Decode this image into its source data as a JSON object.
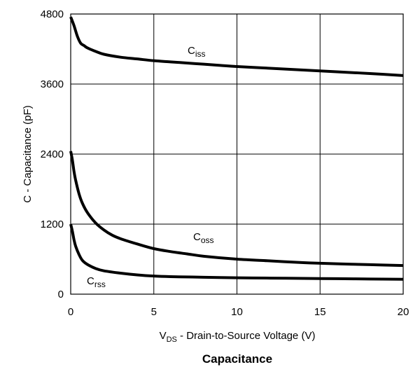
{
  "chart_data": {
    "type": "line",
    "title": "Capacitance",
    "xlabel": {
      "main": "V",
      "sub": "DS",
      "rest": " - Drain-to-Source Voltage (V)"
    },
    "ylabel": "C - Capacitance (pF)",
    "xlim": [
      0,
      20
    ],
    "ylim": [
      0,
      4800
    ],
    "xticks": [
      "0",
      "5",
      "10",
      "15",
      "20"
    ],
    "yticks": [
      "0",
      "1200",
      "2400",
      "3600",
      "4800"
    ],
    "grid": true,
    "series": [
      {
        "name": {
          "main": "C",
          "sub": "iss"
        },
        "x": [
          0,
          0.2,
          0.4,
          0.6,
          0.8,
          1.0,
          1.5,
          2,
          3,
          4,
          5,
          6,
          7,
          8,
          9,
          10,
          12,
          14,
          16,
          18,
          20
        ],
        "y": [
          4750,
          4600,
          4420,
          4300,
          4260,
          4220,
          4160,
          4110,
          4060,
          4030,
          4000,
          3980,
          3960,
          3940,
          3920,
          3900,
          3870,
          3840,
          3810,
          3780,
          3745
        ]
      },
      {
        "name": {
          "main": "C",
          "sub": "oss"
        },
        "x": [
          0,
          0.1,
          0.2,
          0.3,
          0.5,
          0.7,
          1.0,
          1.5,
          2,
          2.5,
          3,
          4,
          5,
          6,
          7,
          8,
          10,
          12,
          14,
          16,
          18,
          20
        ],
        "y": [
          2450,
          2300,
          2100,
          1950,
          1720,
          1560,
          1400,
          1220,
          1100,
          1010,
          950,
          860,
          780,
          730,
          690,
          650,
          600,
          570,
          540,
          520,
          505,
          490
        ]
      },
      {
        "name": {
          "main": "C",
          "sub": "rss"
        },
        "x": [
          0,
          0.1,
          0.2,
          0.3,
          0.5,
          0.7,
          1.0,
          1.5,
          2,
          3,
          4,
          5,
          6,
          8,
          10,
          12,
          14,
          16,
          18,
          20
        ],
        "y": [
          1200,
          1080,
          930,
          820,
          680,
          580,
          510,
          440,
          400,
          360,
          330,
          310,
          300,
          290,
          280,
          275,
          270,
          265,
          260,
          255
        ]
      }
    ]
  }
}
